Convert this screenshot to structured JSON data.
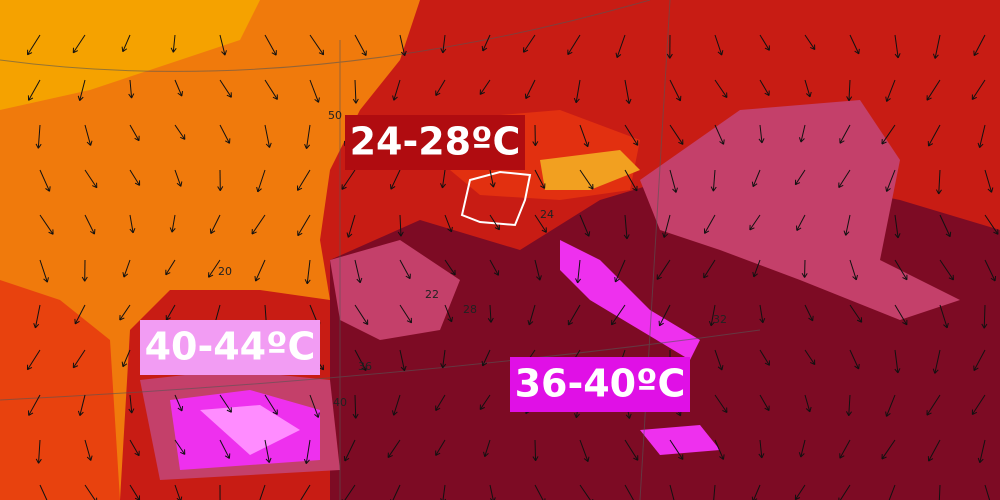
{
  "map": {
    "temperature_labels": [
      {
        "text": "24-28ºC"
      },
      {
        "text": "40-44ºC"
      },
      {
        "text": "36-40ºC"
      }
    ],
    "contour_labels": [
      "50",
      "20",
      "22",
      "28",
      "36",
      "40",
      "32",
      "24"
    ]
  }
}
